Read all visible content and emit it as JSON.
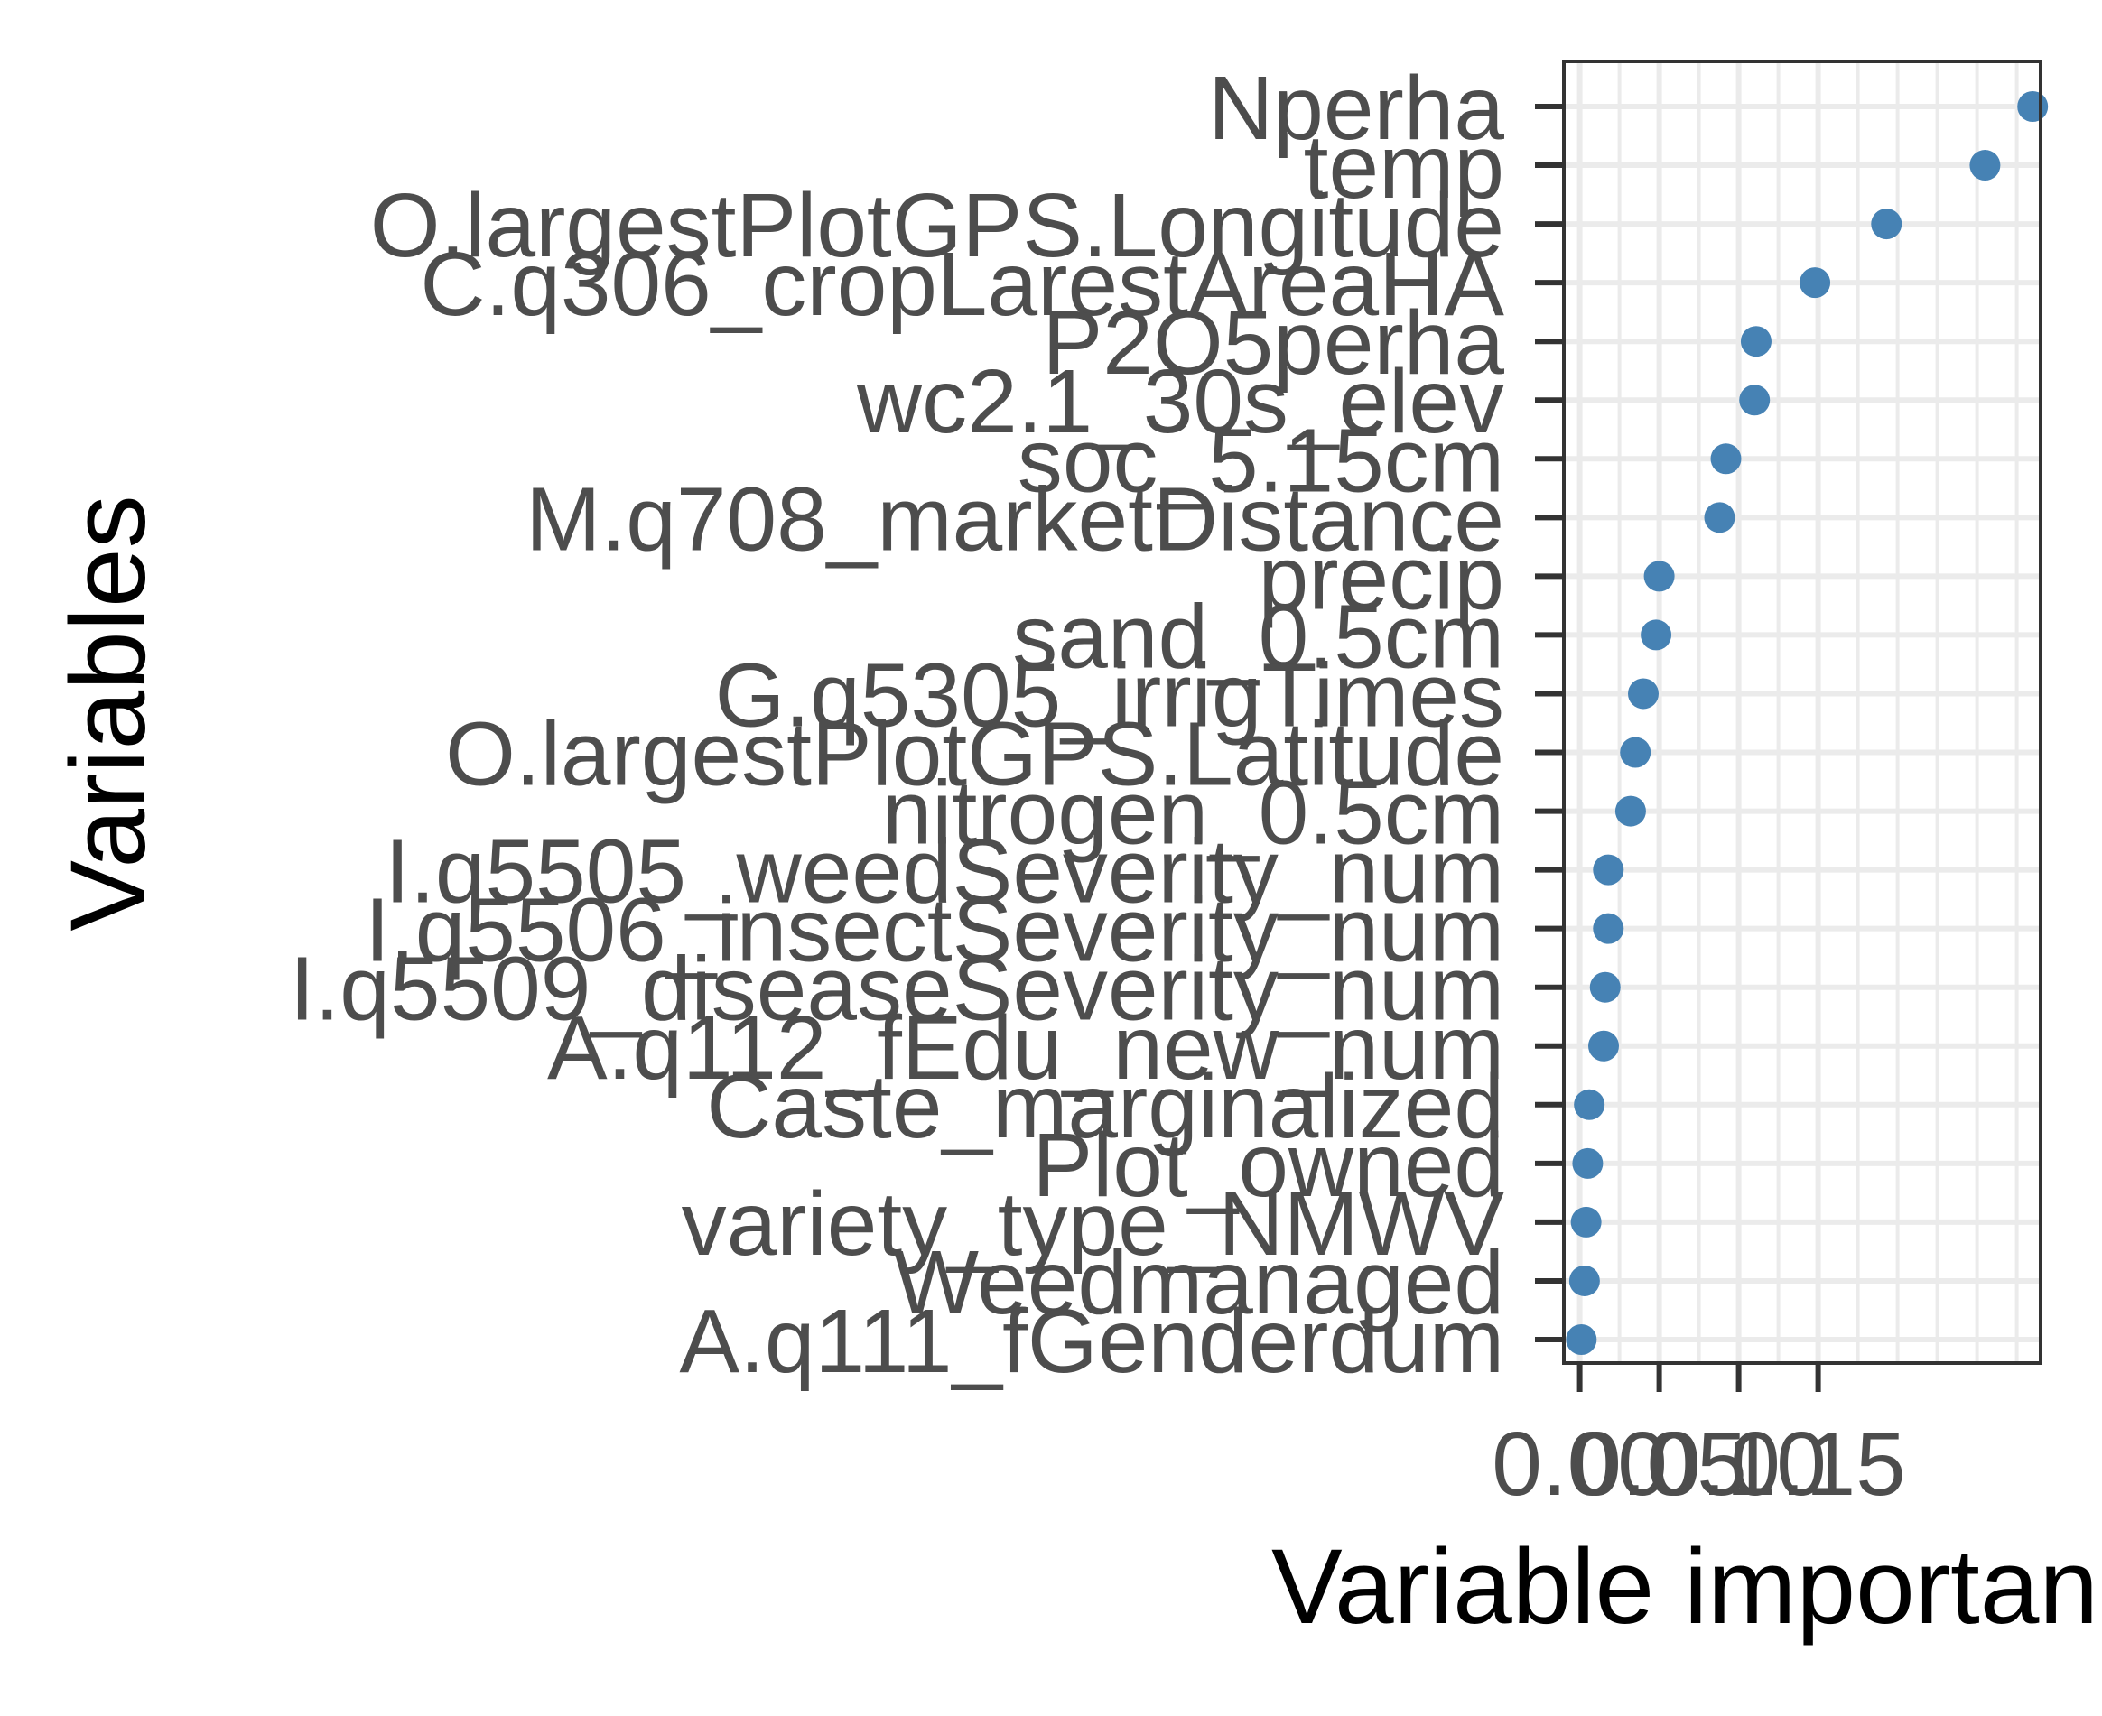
{
  "chart_data": {
    "type": "scatter",
    "title": "",
    "xlabel": "Variable importance",
    "ylabel": "Variables",
    "xlim": [
      -0.01,
      0.29
    ],
    "xticks": [
      0.0,
      0.05,
      0.1,
      0.15
    ],
    "xtick_labels": [
      "0.00",
      "0.05",
      "0.10",
      "0.15"
    ],
    "grid": true,
    "point_color": "#4682b4",
    "panel_background": "#ffffff",
    "grid_color": "#ebebeb",
    "categories": [
      "Nperha",
      "temp",
      "O.largestPlotGPS.Longitude",
      "C.q306_cropLarestAreaHA",
      "P2O5perha",
      "wc2.1_30s_elev",
      "soc_5.15cm",
      "M.q708_marketDistance",
      "precip",
      "sand_0.5cm",
      "G.q5305_irrigTimes",
      "O.largestPlotGPS.Latitude",
      "nitrogen_0.5cm",
      "I.q5505_weedSeverity_num",
      "I.q5506_insectSeverity_num",
      "I.q5509_diseaseSeverity_num",
      "A.q112_fEdu_new_num",
      "Caste_marginalized",
      "Plot_owned",
      "variety_type_NMWV",
      "Weedmanaged",
      "A.q111_fGenderdum"
    ],
    "values": [
      0.285,
      0.255,
      0.193,
      0.148,
      0.111,
      0.11,
      0.092,
      0.088,
      0.05,
      0.048,
      0.04,
      0.035,
      0.032,
      0.018,
      0.018,
      0.016,
      0.015,
      0.006,
      0.005,
      0.004,
      0.003,
      0.001
    ]
  }
}
